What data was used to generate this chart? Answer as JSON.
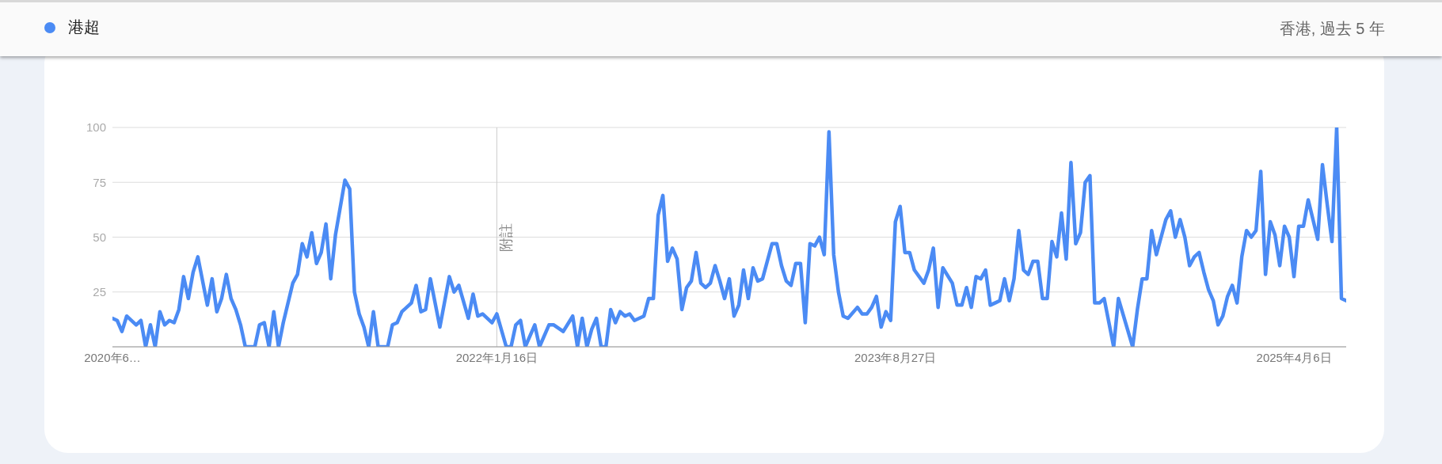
{
  "chart_data": {
    "type": "line",
    "subtitle": "香港, 過去 5 年",
    "legend": "top left",
    "grid": "y",
    "marker": "none",
    "line_style": "solid",
    "xlim": [
      "2020-06-28",
      "2025-06-22"
    ],
    "xticks": [
      {
        "value": "2020-06-28",
        "label": "2020年6…"
      },
      {
        "value": "2022-01-16",
        "label": "2022年1月16日"
      },
      {
        "value": "2023-08-27",
        "label": "2023年8月27日"
      },
      {
        "value": "2025-04-06",
        "label": "2025年4月6日"
      }
    ],
    "ylim": [
      0,
      100
    ],
    "yticks": [
      {
        "value": 0,
        "label": null
      },
      25,
      50,
      75,
      100
    ],
    "ref_lines": [
      {
        "axis": "x",
        "value": "2022-01-16",
        "label": "附註",
        "color": "#cccccc"
      }
    ],
    "x": [
      "2020-06-28",
      "2020-07-05",
      "2020-07-12",
      "2020-07-19",
      "2020-08-02",
      "2020-08-09",
      "2020-08-16",
      "2020-08-23",
      "2020-08-30",
      "2020-09-06",
      "2020-09-13",
      "2020-09-20",
      "2020-09-27",
      "2020-10-04",
      "2020-10-11",
      "2020-10-18",
      "2020-10-25",
      "2020-11-01",
      "2020-11-15",
      "2020-11-22",
      "2020-11-29",
      "2020-12-06",
      "2020-12-13",
      "2020-12-20",
      "2020-12-27",
      "2021-01-03",
      "2021-01-10",
      "2021-01-24",
      "2021-01-31",
      "2021-02-07",
      "2021-02-14",
      "2021-02-21",
      "2021-02-28",
      "2021-03-07",
      "2021-03-21",
      "2021-03-28",
      "2021-04-04",
      "2021-04-11",
      "2021-04-18",
      "2021-04-25",
      "2021-05-02",
      "2021-05-09",
      "2021-05-16",
      "2021-05-23",
      "2021-06-06",
      "2021-06-13",
      "2021-06-20",
      "2021-06-27",
      "2021-07-04",
      "2021-07-11",
      "2021-07-18",
      "2021-07-25",
      "2021-08-08",
      "2021-08-15",
      "2021-08-22",
      "2021-08-29",
      "2021-09-12",
      "2021-09-19",
      "2021-09-26",
      "2021-10-03",
      "2021-10-10",
      "2021-10-24",
      "2021-11-07",
      "2021-11-14",
      "2021-11-21",
      "2021-12-05",
      "2021-12-12",
      "2021-12-19",
      "2021-12-26",
      "2022-01-09",
      "2022-01-16",
      "2022-01-30",
      "2022-02-06",
      "2022-02-13",
      "2022-02-20",
      "2022-02-27",
      "2022-03-13",
      "2022-03-20",
      "2022-04-03",
      "2022-04-10",
      "2022-04-24",
      "2022-05-08",
      "2022-05-15",
      "2022-05-22",
      "2022-05-29",
      "2022-06-05",
      "2022-06-12",
      "2022-06-19",
      "2022-06-26",
      "2022-07-03",
      "2022-07-10",
      "2022-07-17",
      "2022-07-24",
      "2022-07-31",
      "2022-08-07",
      "2022-08-14",
      "2022-08-21",
      "2022-08-28",
      "2022-09-04",
      "2022-09-11",
      "2022-09-18",
      "2022-09-25",
      "2022-10-02",
      "2022-10-09",
      "2022-10-16",
      "2022-10-23",
      "2022-10-30",
      "2022-11-06",
      "2022-11-13",
      "2022-11-20",
      "2022-11-27",
      "2022-12-04",
      "2022-12-11",
      "2022-12-18",
      "2022-12-25",
      "2023-01-01",
      "2023-01-08",
      "2023-01-15",
      "2023-01-22",
      "2023-01-29",
      "2023-02-05",
      "2023-02-12",
      "2023-02-26",
      "2023-03-05",
      "2023-03-12",
      "2023-03-19",
      "2023-03-26",
      "2023-04-02",
      "2023-04-09",
      "2023-04-16",
      "2023-04-23",
      "2023-04-30",
      "2023-05-07",
      "2023-05-14",
      "2023-05-21",
      "2023-05-28",
      "2023-06-04",
      "2023-06-11",
      "2023-06-18",
      "2023-07-02",
      "2023-07-09",
      "2023-07-16",
      "2023-07-23",
      "2023-07-30",
      "2023-08-06",
      "2023-08-13",
      "2023-08-20",
      "2023-08-27",
      "2023-09-03",
      "2023-09-10",
      "2023-09-17",
      "2023-09-24",
      "2023-10-08",
      "2023-10-15",
      "2023-10-22",
      "2023-10-29",
      "2023-11-05",
      "2023-11-19",
      "2023-11-26",
      "2023-12-03",
      "2023-12-10",
      "2023-12-17",
      "2023-12-24",
      "2023-12-31",
      "2024-01-07",
      "2024-01-14",
      "2024-01-21",
      "2024-01-28",
      "2024-02-04",
      "2024-02-11",
      "2024-02-18",
      "2024-02-25",
      "2024-03-03",
      "2024-03-10",
      "2024-03-17",
      "2024-03-24",
      "2024-03-31",
      "2024-04-07",
      "2024-04-14",
      "2024-04-21",
      "2024-04-28",
      "2024-05-05",
      "2024-05-12",
      "2024-05-19",
      "2024-05-26",
      "2024-06-02",
      "2024-06-09",
      "2024-06-16",
      "2024-06-23",
      "2024-06-30",
      "2024-07-14",
      "2024-07-21",
      "2024-08-11",
      "2024-08-18",
      "2024-08-25",
      "2024-09-01",
      "2024-09-08",
      "2024-09-15",
      "2024-09-22",
      "2024-09-29",
      "2024-10-06",
      "2024-10-13",
      "2024-10-20",
      "2024-10-27",
      "2024-11-03",
      "2024-11-10",
      "2024-11-17",
      "2024-11-24",
      "2024-12-01",
      "2024-12-08",
      "2024-12-15",
      "2024-12-22",
      "2024-12-29",
      "2025-01-05",
      "2025-01-12",
      "2025-01-19",
      "2025-01-26",
      "2025-02-02",
      "2025-02-09",
      "2025-02-16",
      "2025-02-23",
      "2025-03-02",
      "2025-03-09",
      "2025-03-16",
      "2025-03-23",
      "2025-03-30",
      "2025-04-06",
      "2025-04-13",
      "2025-04-20",
      "2025-04-27",
      "2025-05-04",
      "2025-05-11",
      "2025-05-18",
      "2025-05-25",
      "2025-06-01",
      "2025-06-08",
      "2025-06-15",
      "2025-06-22"
    ],
    "series": [
      {
        "name": "港超",
        "color": "#4b8bf4",
        "values": [
          13,
          12,
          7,
          14,
          10,
          12,
          0,
          10,
          0,
          16,
          10,
          12,
          11,
          17,
          32,
          22,
          34,
          41,
          19,
          31,
          16,
          22,
          33,
          22,
          17,
          10,
          0,
          0,
          10,
          11,
          0,
          16,
          0,
          11,
          29,
          33,
          47,
          41,
          52,
          38,
          43,
          56,
          31,
          51,
          76,
          72,
          25,
          15,
          9,
          0,
          16,
          0,
          0,
          10,
          11,
          16,
          20,
          28,
          16,
          17,
          31,
          9,
          32,
          25,
          28,
          13,
          24,
          14,
          15,
          11,
          15,
          0,
          0,
          10,
          12,
          0,
          10,
          0,
          10,
          10,
          7,
          14,
          0,
          13,
          0,
          8,
          13,
          0,
          0,
          17,
          11,
          16,
          14,
          15,
          12,
          13,
          14,
          22,
          22,
          60,
          69,
          39,
          45,
          40,
          17,
          27,
          30,
          43,
          29,
          27,
          29,
          37,
          30,
          22,
          31,
          14,
          19,
          35,
          22,
          36,
          30,
          31,
          47,
          47,
          37,
          30,
          28,
          38,
          38,
          11,
          47,
          46,
          50,
          42,
          98,
          42,
          25,
          14,
          13,
          18,
          15,
          15,
          18,
          23,
          9,
          16,
          12,
          57,
          64,
          43,
          43,
          35,
          29,
          35,
          45,
          18,
          36,
          29,
          19,
          19,
          27,
          18,
          32,
          31,
          35,
          19,
          20,
          21,
          31,
          21,
          31,
          53,
          35,
          33,
          39,
          39,
          22,
          22,
          48,
          41,
          61,
          40,
          84,
          47,
          52,
          75,
          78,
          20,
          20,
          22,
          0,
          22,
          0,
          17,
          31,
          31,
          53,
          42,
          50,
          58,
          62,
          50,
          58,
          50,
          37,
          41,
          43,
          34,
          26,
          21,
          10,
          14,
          23,
          28,
          20,
          41,
          53,
          50,
          53,
          80,
          33,
          57,
          51,
          37,
          55,
          50,
          32,
          55,
          55,
          67,
          58,
          49,
          83,
          65,
          48,
          100,
          22,
          21
        ]
      }
    ]
  }
}
